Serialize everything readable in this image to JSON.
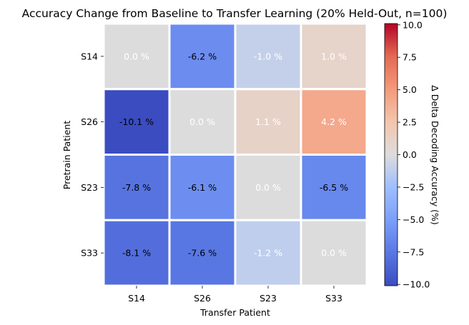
{
  "chart_data": {
    "type": "heatmap",
    "title": "Accuracy Change from Baseline to Transfer Learning (20% Held-Out, n=100)",
    "xlabel": "Transfer Patient",
    "ylabel": "Pretrain Patient",
    "x_categories": [
      "S14",
      "S26",
      "S23",
      "S33"
    ],
    "y_categories": [
      "S14",
      "S26",
      "S23",
      "S33"
    ],
    "values": [
      [
        0.0,
        -6.2,
        -1.0,
        1.0
      ],
      [
        -10.1,
        0.0,
        1.1,
        4.2
      ],
      [
        -7.8,
        -6.1,
        0.0,
        -6.5
      ],
      [
        -8.1,
        -7.6,
        -1.2,
        0.0
      ]
    ],
    "cell_labels": [
      [
        "0.0 %",
        "-6.2 %",
        "-1.0 %",
        "1.0 %"
      ],
      [
        "-10.1 %",
        "0.0 %",
        "1.1 %",
        "4.2 %"
      ],
      [
        "-7.8 %",
        "-6.1 %",
        "0.0 %",
        "-6.5 %"
      ],
      [
        "-8.1 %",
        "-7.6 %",
        "-1.2 %",
        "0.0 %"
      ]
    ],
    "label_colors": [
      [
        "white",
        "black",
        "white",
        "white"
      ],
      [
        "black",
        "white",
        "white",
        "white"
      ],
      [
        "black",
        "black",
        "white",
        "black"
      ],
      [
        "black",
        "black",
        "white",
        "white"
      ]
    ],
    "colormap": "coolwarm",
    "vmin": -10.1,
    "vmax": 10.1,
    "colorbar": {
      "label": "Δ Delta Decoding Accuracy (%)",
      "ticks": [
        10.0,
        7.5,
        5.0,
        2.5,
        0.0,
        -2.5,
        -5.0,
        -7.5,
        -10.0
      ],
      "tick_labels": [
        "10.0",
        "7.5",
        "5.0",
        "2.5",
        "0.0",
        "−2.5",
        "−5.0",
        "−7.5",
        "−10.0"
      ]
    }
  }
}
